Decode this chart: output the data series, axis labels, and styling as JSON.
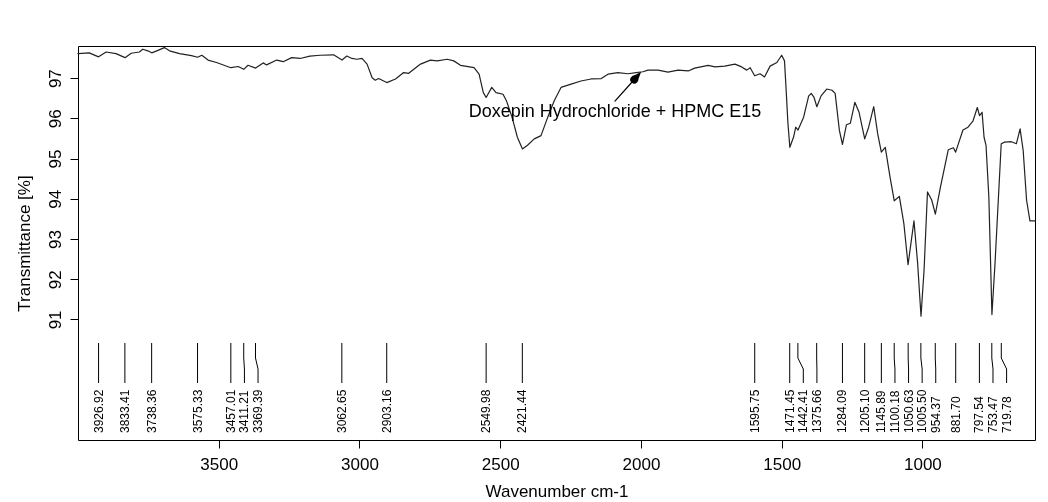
{
  "chart_data": {
    "type": "line",
    "xlabel": "Wavenumber cm-1",
    "ylabel": "Transmittance [%]",
    "xlim": [
      4000,
      600
    ],
    "ylim": [
      88,
      97.8
    ],
    "xticks": [
      3500,
      3000,
      2500,
      2000,
      1500,
      1000
    ],
    "yticks": [
      91,
      92,
      93,
      94,
      95,
      96,
      97
    ],
    "x": [
      4000,
      3960,
      3927,
      3900,
      3865,
      3833,
      3811,
      3782,
      3770,
      3752,
      3738,
      3716,
      3693,
      3675,
      3639,
      3597,
      3575,
      3560,
      3538,
      3508,
      3457,
      3431,
      3411,
      3396,
      3369,
      3342,
      3330,
      3294,
      3271,
      3241,
      3211,
      3176,
      3140,
      3092,
      3062,
      3045,
      3027,
      3009,
      2991,
      2973,
      2955,
      2944,
      2932,
      2903,
      2872,
      2843,
      2825,
      2807,
      2783,
      2748,
      2724,
      2688,
      2665,
      2641,
      2593,
      2575,
      2560,
      2550,
      2530,
      2515,
      2490,
      2478,
      2458,
      2439,
      2421,
      2403,
      2379,
      2355,
      2331,
      2308,
      2284,
      2248,
      2213,
      2177,
      2141,
      2117,
      2082,
      2046,
      2017,
      1993,
      1975,
      1939,
      1904,
      1868,
      1832,
      1809,
      1761,
      1737,
      1702,
      1666,
      1642,
      1624,
      1612,
      1596,
      1577,
      1561,
      1541,
      1517,
      1500,
      1490,
      1484,
      1478,
      1471,
      1458,
      1450,
      1442,
      1422,
      1404,
      1395,
      1385,
      1375,
      1360,
      1340,
      1321,
      1310,
      1295,
      1284,
      1270,
      1256,
      1240,
      1225,
      1205,
      1191,
      1173,
      1159,
      1146,
      1132,
      1115,
      1100,
      1082,
      1066,
      1051,
      1030,
      1017,
      1005,
      994,
      982,
      967,
      954,
      936,
      908,
      890,
      882,
      856,
      838,
      820,
      805,
      797,
      788,
      781,
      774,
      764,
      753,
      742,
      720,
      708,
      684,
      666,
      653,
      642,
      630,
      618,
      600
    ],
    "series": [
      {
        "color": "#222222",
        "values": [
          97.61,
          97.63,
          97.53,
          97.65,
          97.61,
          97.51,
          97.62,
          97.65,
          97.72,
          97.68,
          97.63,
          97.69,
          97.76,
          97.68,
          97.61,
          97.56,
          97.52,
          97.57,
          97.45,
          97.39,
          97.26,
          97.29,
          97.22,
          97.32,
          97.25,
          97.38,
          97.33,
          97.45,
          97.41,
          97.51,
          97.49,
          97.55,
          97.57,
          97.58,
          97.45,
          97.55,
          97.49,
          97.47,
          97.49,
          97.35,
          97.01,
          96.95,
          96.99,
          96.89,
          96.98,
          97.14,
          97.12,
          97.22,
          97.35,
          97.45,
          97.43,
          97.47,
          97.43,
          97.32,
          97.26,
          97.1,
          96.64,
          96.52,
          96.77,
          96.64,
          96.6,
          96.44,
          96.03,
          95.53,
          95.24,
          95.33,
          95.49,
          95.57,
          96.03,
          96.44,
          96.77,
          96.85,
          96.93,
          96.98,
          96.99,
          97.1,
          97.14,
          97.11,
          97.14,
          97.16,
          97.2,
          97.2,
          97.15,
          97.2,
          97.18,
          97.25,
          97.32,
          97.28,
          97.3,
          97.35,
          97.28,
          97.2,
          97.26,
          97.06,
          97.11,
          97.03,
          97.3,
          97.39,
          97.57,
          97.43,
          96.69,
          95.9,
          95.28,
          95.53,
          95.78,
          95.71,
          96.03,
          96.56,
          96.62,
          96.52,
          96.29,
          96.56,
          96.73,
          96.7,
          96.62,
          95.7,
          95.35,
          95.84,
          95.88,
          96.4,
          96.15,
          95.49,
          95.78,
          96.29,
          95.62,
          95.16,
          95.28,
          94.54,
          93.95,
          94.06,
          93.39,
          92.36,
          93.45,
          92.4,
          91.08,
          92.24,
          94.17,
          93.97,
          93.62,
          94.29,
          95.22,
          95.27,
          95.16,
          95.71,
          95.78,
          95.94,
          96.27,
          96.07,
          96.15,
          95.53,
          95.33,
          94.05,
          91.12,
          92.4,
          95.37,
          95.41,
          95.42,
          95.37,
          95.74,
          95.2,
          93.97,
          93.45,
          93.45
        ]
      }
    ],
    "annotations": [
      {
        "text": "Doxepin Hydrochloride + HPMC E15",
        "x": 2000,
        "y": 97.15
      },
      {
        "text": "3926.92",
        "x": 3926.92
      },
      {
        "text": "3833.41",
        "x": 3833.41
      },
      {
        "text": "3738.36",
        "x": 3738.36
      },
      {
        "text": "3575.33",
        "x": 3575.33
      },
      {
        "text": "3457.01",
        "x": 3457.01
      },
      {
        "text": "3411.21",
        "x": 3411.21
      },
      {
        "text": "3369.39",
        "x": 3369.39
      },
      {
        "text": "3062.65",
        "x": 3062.65
      },
      {
        "text": "2903.16",
        "x": 2903.16
      },
      {
        "text": "2549.98",
        "x": 2549.98
      },
      {
        "text": "2421.44",
        "x": 2421.44
      },
      {
        "text": "1595.75",
        "x": 1595.75
      },
      {
        "text": "1471.45",
        "x": 1471.45
      },
      {
        "text": "1442.41",
        "x": 1442.41
      },
      {
        "text": "1375.66",
        "x": 1375.66
      },
      {
        "text": "1284.09",
        "x": 1284.09
      },
      {
        "text": "1205.10",
        "x": 1205.1
      },
      {
        "text": "1145.89",
        "x": 1145.89
      },
      {
        "text": "1100.18",
        "x": 1100.18
      },
      {
        "text": "1050.63",
        "x": 1050.63
      },
      {
        "text": "1005.50",
        "x": 1005.5
      },
      {
        "text": "954.37",
        "x": 954.37
      },
      {
        "text": "881.70",
        "x": 881.7
      },
      {
        "text": "797.54",
        "x": 797.54
      },
      {
        "text": "753.47",
        "x": 753.47
      },
      {
        "text": "719.78",
        "x": 719.78
      }
    ]
  }
}
